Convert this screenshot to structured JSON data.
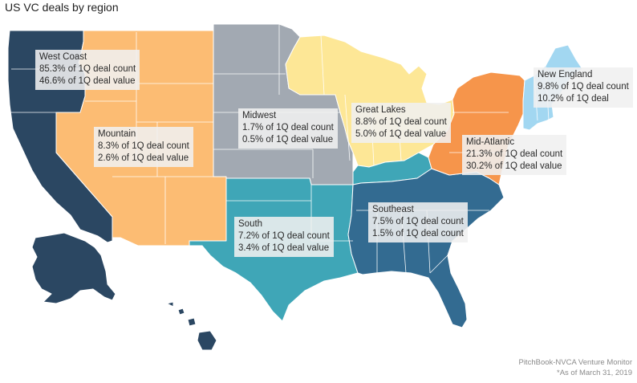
{
  "title": "US VC deals by region",
  "colors": {
    "west_coast": "#2b4762",
    "mountain": "#fcbc73",
    "midwest": "#a2a9b2",
    "great_lakes": "#fde796",
    "south": "#3fa6b7",
    "southeast": "#336b91",
    "mid_atlantic": "#f6954b",
    "new_england": "#a2d7f1",
    "kentucky": "#3fa6b7",
    "state_border": "#ffffff"
  },
  "regions": [
    {
      "key": "west_coast",
      "name": "West Coast",
      "line1": "85.3% of 1Q deal count",
      "line2": "46.6% of 1Q deal value"
    },
    {
      "key": "mountain",
      "name": "Mountain",
      "line1": "8.3% of 1Q deal count",
      "line2": "2.6% of 1Q deal value"
    },
    {
      "key": "midwest",
      "name": "Midwest",
      "line1": "1.7% of 1Q deal count",
      "line2": "0.5% of 1Q deal value"
    },
    {
      "key": "great_lakes",
      "name": "Great Lakes",
      "line1": "8.8% of 1Q deal count",
      "line2": "5.0% of 1Q deal value"
    },
    {
      "key": "new_england",
      "name": "New England",
      "line1": "9.8% of 1Q deal count",
      "line2": "10.2% of 1Q deal"
    },
    {
      "key": "mid_atlantic",
      "name": "Mid-Atlantic",
      "line1": "21.3% of 1Q deal count",
      "line2": "30.2% of 1Q deal value"
    },
    {
      "key": "southeast",
      "name": "Southeast",
      "line1": "7.5% of 1Q deal count",
      "line2": "1.5% of 1Q deal count"
    },
    {
      "key": "south",
      "name": "South",
      "line1": "7.2% of 1Q deal count",
      "line2": "3.4% of 1Q deal value"
    }
  ],
  "source": {
    "line1": "PitchBook-NVCA Venture Monitor",
    "line2": "*As of March 31, 2019"
  }
}
